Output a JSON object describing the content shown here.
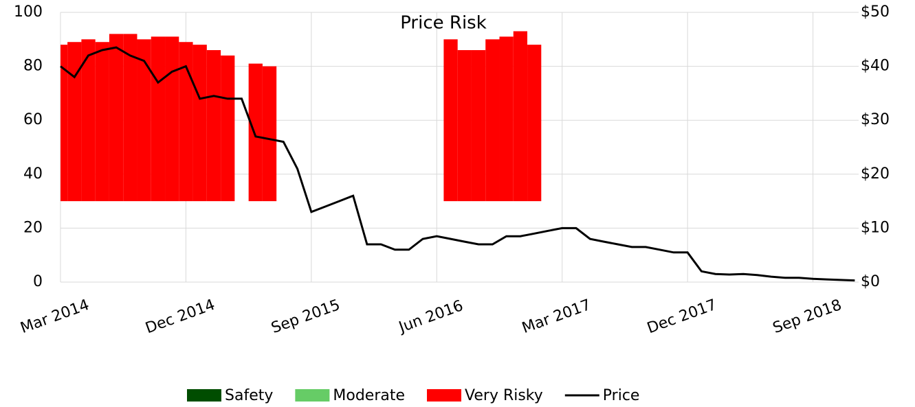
{
  "chart_data": {
    "type": "bar_line",
    "title": "Price Risk",
    "x": [
      "Mar 2014",
      "Apr 2014",
      "May 2014",
      "Jun 2014",
      "Jul 2014",
      "Aug 2014",
      "Sep 2014",
      "Oct 2014",
      "Nov 2014",
      "Dec 2014",
      "Jan 2015",
      "Feb 2015",
      "Mar 2015",
      "Apr 2015",
      "May 2015",
      "Jun 2015",
      "Jul 2015",
      "Aug 2015",
      "Sep 2015",
      "Oct 2015",
      "Nov 2015",
      "Dec 2015",
      "Jan 2016",
      "Feb 2016",
      "Mar 2016",
      "Apr 2016",
      "May 2016",
      "Jun 2016",
      "Jul 2016",
      "Aug 2016",
      "Sep 2016",
      "Oct 2016",
      "Nov 2016",
      "Dec 2016",
      "Jan 2017",
      "Feb 2017",
      "Mar 2017",
      "Apr 2017",
      "May 2017",
      "Jun 2017",
      "Jul 2017",
      "Aug 2017",
      "Sep 2017",
      "Oct 2017",
      "Nov 2017",
      "Dec 2017",
      "Jan 2018",
      "Feb 2018",
      "Mar 2018",
      "Apr 2018",
      "May 2018",
      "Jun 2018",
      "Jul 2018",
      "Aug 2018",
      "Sep 2018",
      "Oct 2018",
      "Nov 2018",
      "Dec 2018"
    ],
    "xticks": [
      "Mar 2014",
      "Dec 2014",
      "Sep 2015",
      "Jun 2016",
      "Mar 2017",
      "Dec 2017",
      "Sep 2018"
    ],
    "bar_base": 30,
    "series": [
      {
        "name": "Safety",
        "color": "#004d00"
      },
      {
        "name": "Moderate",
        "color": "#66cc66"
      },
      {
        "name": "Very Risky",
        "color": "#ff0000",
        "values": [
          88,
          89,
          90,
          89,
          92,
          92,
          90,
          91,
          91,
          89,
          88,
          86,
          84,
          null,
          81,
          80,
          null,
          null,
          null,
          null,
          null,
          null,
          null,
          null,
          null,
          null,
          null,
          null,
          90,
          86,
          86,
          90,
          91,
          93,
          88,
          null,
          null,
          null,
          null,
          null,
          null,
          null,
          null,
          null,
          null,
          null,
          null,
          null,
          null,
          null,
          null,
          null,
          null,
          null,
          null,
          null,
          null,
          null
        ]
      },
      {
        "name": "Price",
        "color": "#000000",
        "axis": "y2",
        "values": [
          40,
          38,
          42,
          43,
          43.5,
          42,
          41,
          37,
          39,
          40,
          34,
          34.5,
          34,
          34,
          27,
          26.5,
          26,
          21,
          13,
          14,
          15,
          16,
          7,
          7,
          6,
          6,
          8,
          8.5,
          8,
          7.5,
          7,
          7,
          8.5,
          8.5,
          9,
          9.5,
          10,
          10,
          8,
          7.5,
          7,
          6.5,
          6.5,
          6,
          5.5,
          5.5,
          2,
          1.5,
          1.4,
          1.5,
          1.3,
          1,
          0.8,
          0.8,
          0.6,
          0.5,
          0.4,
          0.3
        ]
      }
    ],
    "ylim": [
      0,
      100
    ],
    "yticks": [
      0,
      20,
      40,
      60,
      80,
      100
    ],
    "y2lim": [
      0,
      50
    ],
    "y2ticks": [
      {
        "value": 0,
        "label": "$0"
      },
      {
        "value": 10,
        "label": "$10"
      },
      {
        "value": 20,
        "label": "$20"
      },
      {
        "value": 30,
        "label": "$30"
      },
      {
        "value": 40,
        "label": "$40"
      },
      {
        "value": 50,
        "label": "$50"
      }
    ],
    "grid": true,
    "legend": "bottom"
  }
}
